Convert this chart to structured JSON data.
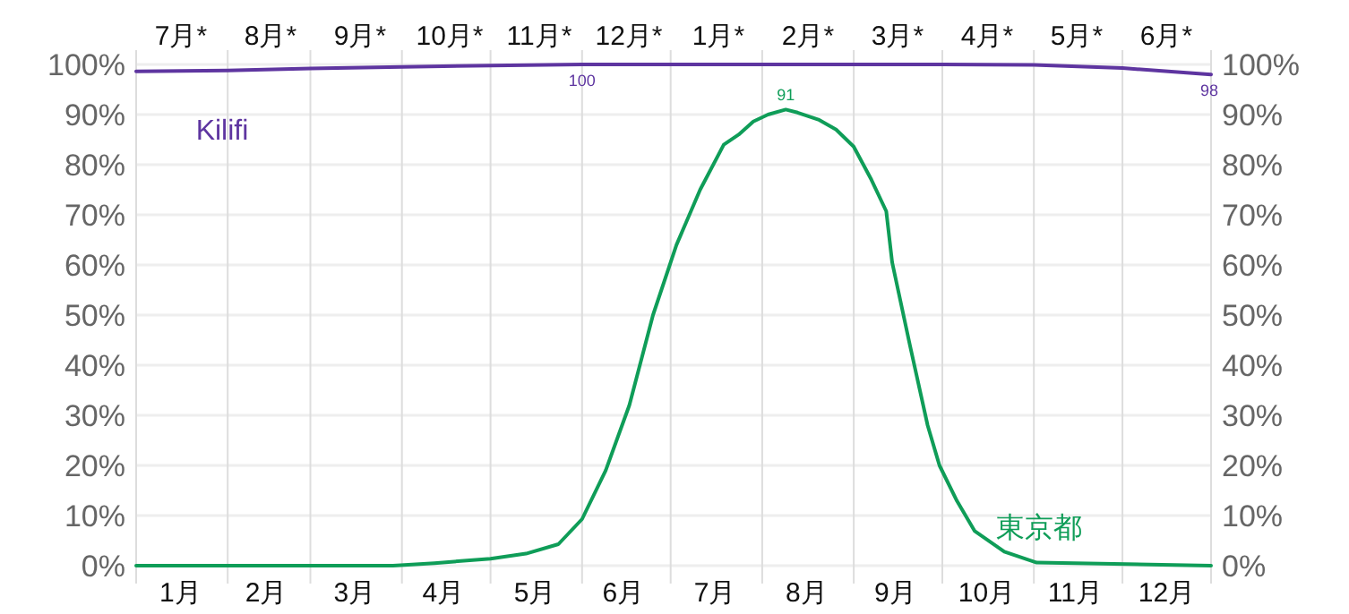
{
  "chart_data": {
    "type": "line",
    "legend": false,
    "grid": true,
    "marker": "none",
    "line_style": "solid",
    "xlim": [
      "--01-01",
      "--12-31"
    ],
    "xticks": [
      {
        "value": "--01-01",
        "label": null
      },
      {
        "value": "--02-01",
        "label": null
      },
      {
        "value": "--03-01",
        "label": null
      },
      {
        "value": "--04-01",
        "label": null
      },
      {
        "value": "--05-01",
        "label": null
      },
      {
        "value": "--06-01",
        "label": null
      },
      {
        "value": "--07-01",
        "label": null
      },
      {
        "value": "--08-01",
        "label": null
      },
      {
        "value": "--09-01",
        "label": null
      },
      {
        "value": "--10-01",
        "label": null
      },
      {
        "value": "--11-01",
        "label": null
      },
      {
        "value": "--12-01",
        "label": null
      },
      {
        "value": "--12-31",
        "label": null
      },
      {
        "value": "--01-16",
        "label": "1月"
      },
      {
        "value": "--02-14",
        "label": "2月"
      },
      {
        "value": "--03-16",
        "label": "3月"
      },
      {
        "value": "--04-15",
        "label": "4月"
      },
      {
        "value": "--05-16",
        "label": "5月"
      },
      {
        "value": "--06-15",
        "label": "6月"
      },
      {
        "value": "--07-16",
        "label": "7月"
      },
      {
        "value": "--08-16",
        "label": "8月"
      },
      {
        "value": "--09-15",
        "label": "9月"
      },
      {
        "value": "--10-16",
        "label": "10月"
      },
      {
        "value": "--11-15",
        "label": "11月"
      },
      {
        "value": "--12-16",
        "label": "12月"
      }
    ],
    "annotations": [
      "7月*",
      "8月*",
      "9月*",
      "10月*",
      "11月*",
      "12月*",
      "1月*",
      "2月*",
      "3月*",
      "4月*",
      "5月*",
      "6月*"
    ],
    "ylim": [
      0,
      100
    ],
    "yticks": [
      {
        "value": 0,
        "label": "0%"
      },
      {
        "value": 10,
        "label": "10%"
      },
      {
        "value": 20,
        "label": "20%"
      },
      {
        "value": 30,
        "label": "30%"
      },
      {
        "value": 40,
        "label": "40%"
      },
      {
        "value": 50,
        "label": "50%"
      },
      {
        "value": 60,
        "label": "60%"
      },
      {
        "value": 70,
        "label": "70%"
      },
      {
        "value": 80,
        "label": "80%"
      },
      {
        "value": 90,
        "label": "90%"
      },
      {
        "value": 100,
        "label": "100%"
      }
    ],
    "y2lim": [
      0,
      100
    ],
    "y2ticks": [
      {
        "value": 0,
        "label": "0%"
      },
      {
        "value": 10,
        "label": "10%"
      },
      {
        "value": 20,
        "label": "20%"
      },
      {
        "value": 30,
        "label": "30%"
      },
      {
        "value": 40,
        "label": "40%"
      },
      {
        "value": 50,
        "label": "50%"
      },
      {
        "value": 60,
        "label": "60%"
      },
      {
        "value": 70,
        "label": "70%"
      },
      {
        "value": 80,
        "label": "80%"
      },
      {
        "value": 90,
        "label": "90%"
      },
      {
        "value": 100,
        "label": "100%"
      }
    ],
    "series": [
      {
        "name": "Kilifi",
        "color": "#5e35a0",
        "x": [
          "--01-01",
          "--02-01",
          "--03-01",
          "--04-01",
          "--05-01",
          "--06-01",
          "--07-01",
          "--08-01",
          "--09-01",
          "--10-01",
          "--11-01",
          "--12-01",
          "--12-31"
        ],
        "values": [
          98.6,
          98.8,
          99.2,
          99.5,
          99.8,
          100,
          100,
          100,
          100,
          100,
          99.9,
          99.3,
          98
        ],
        "value_labels": [
          null,
          null,
          null,
          null,
          null,
          "100",
          null,
          null,
          null,
          null,
          null,
          null,
          "98"
        ]
      },
      {
        "name": "東京都",
        "color": "#0f9d58",
        "x": [
          "--01-01",
          "--03-29",
          "--04-12",
          "--05-01",
          "--05-13",
          "--05-24",
          "--06-01",
          "--06-09",
          "--06-17",
          "--06-25",
          "--07-03",
          "--07-11",
          "--07-19",
          "--07-24",
          "--07-29",
          "--08-03",
          "--08-09",
          "--08-13",
          "--08-20",
          "--08-26",
          "--09-01",
          "--09-07",
          "--09-12",
          "--09-14",
          "--09-20",
          "--09-26",
          "--09-30",
          "--10-06",
          "--10-12",
          "--10-22",
          "--11-02",
          "--12-31"
        ],
        "values": [
          0,
          0,
          0.5,
          1.4,
          2.4,
          4.3,
          9.3,
          19,
          32,
          50,
          64,
          75,
          84,
          86,
          88.6,
          90,
          91,
          90.4,
          89,
          87,
          83.6,
          77,
          70.7,
          60.5,
          44,
          28,
          20,
          12.9,
          6.9,
          2.8,
          0.6,
          0
        ],
        "value_labels": [
          null,
          null,
          null,
          null,
          null,
          null,
          null,
          null,
          null,
          null,
          null,
          null,
          null,
          null,
          null,
          null,
          "91",
          null,
          null,
          null,
          null,
          null,
          null,
          null,
          null,
          null,
          null,
          null,
          null,
          null,
          null,
          null
        ]
      }
    ]
  }
}
